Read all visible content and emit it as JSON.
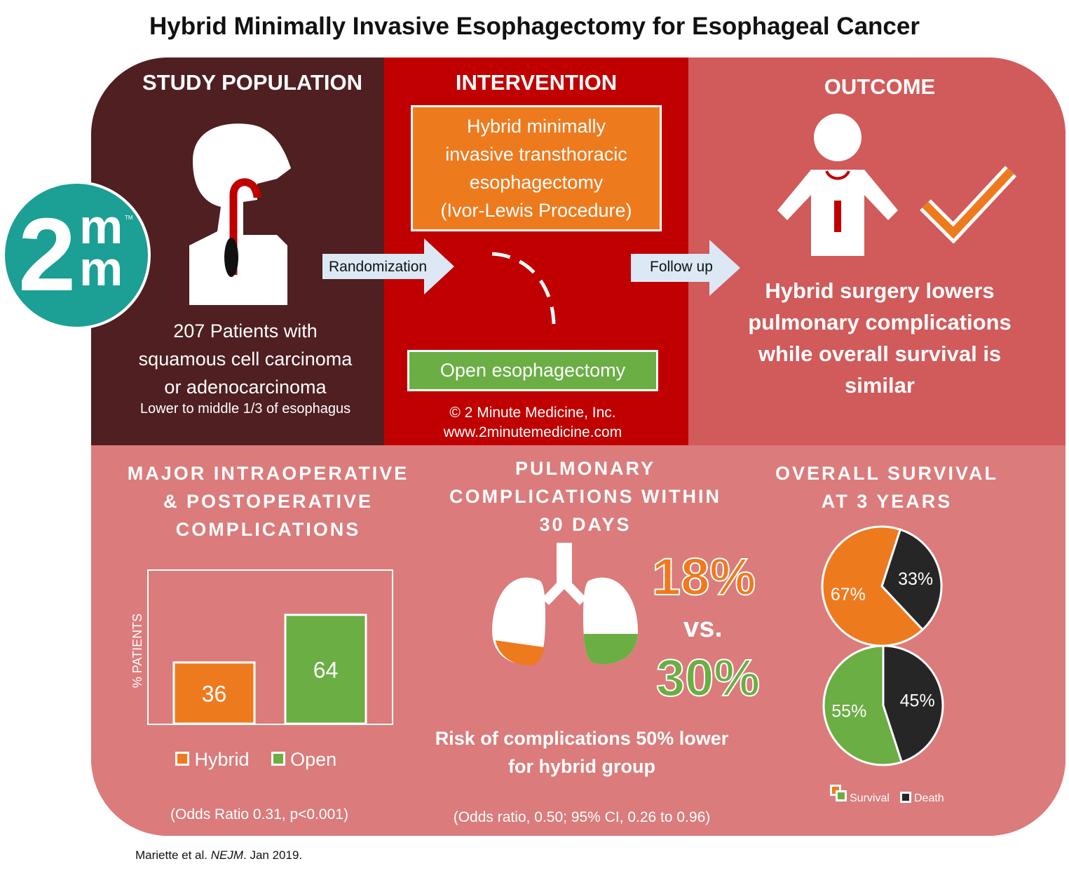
{
  "title": "Hybrid Minimally Invasive Esophagectomy for Esophageal Cancer",
  "logo": {
    "two": "2",
    "m_top": "m",
    "m_bottom": "m",
    "tm": "TM"
  },
  "population": {
    "heading": "STUDY POPULATION",
    "line1": "207 Patients with",
    "line2": "squamous cell carcinoma",
    "line3": "or adenocarcinoma",
    "line4": "Lower to middle 1/3 of esophagus"
  },
  "randomization_label": "Randomization",
  "intervention": {
    "heading": "INTERVENTION",
    "hybrid_line1": "Hybrid minimally",
    "hybrid_line2": "invasive transthoracic",
    "hybrid_line3": "esophagectomy",
    "hybrid_line4": "(Ivor-Lewis Procedure)",
    "open_label": "Open esophagectomy",
    "copyright": "© 2 Minute Medicine, Inc.",
    "website": "www.2minutemedicine.com"
  },
  "followup_label": "Follow up",
  "outcome": {
    "heading": "OUTCOME",
    "line1": "Hybrid surgery lowers",
    "line2": "pulmonary complications",
    "line3": "while overall survival is",
    "line4": "similar"
  },
  "major": {
    "heading1": "MAJOR INTRAOPERATIVE",
    "heading2": "& POSTOPERATIVE",
    "heading3": "COMPLICATIONS",
    "ylabel": "% PATIENTS",
    "legend_hybrid": "Hybrid",
    "legend_open": "Open",
    "stats": "(Odds Ratio 0.31, p<0.001)"
  },
  "pulmonary": {
    "heading1": "PULMONARY",
    "heading2": "COMPLICATIONS WITHIN",
    "heading3": "30 DAYS",
    "hybrid_pct": "18%",
    "vs": "vs.",
    "open_pct": "30%",
    "risk_line1": "Risk of complications 50% lower",
    "risk_line2": "for hybrid group",
    "stats": "(Odds ratio, 0.50; 95% CI, 0.26 to 0.96)"
  },
  "survival": {
    "heading1": "OVERALL SURVIVAL",
    "heading2": "AT 3 YEARS",
    "legend_survival": "Survival",
    "legend_death": "Death"
  },
  "colors": {
    "orange": "#ee7a1e",
    "green": "#6aae44",
    "dark": "#262626"
  },
  "chart_data": [
    {
      "type": "bar",
      "categories": [
        "Hybrid",
        "Open"
      ],
      "values": [
        36,
        64
      ],
      "ylabel": "% PATIENTS",
      "ylim": [
        0,
        100
      ],
      "colors": [
        "#ee7a1e",
        "#6aae44"
      ]
    },
    {
      "type": "pie",
      "name": "Hybrid",
      "labels": [
        "Survival",
        "Death"
      ],
      "values": [
        67,
        33
      ],
      "colors": [
        "#ee7a1e",
        "#262626"
      ]
    },
    {
      "type": "pie",
      "name": "Open",
      "labels": [
        "Survival",
        "Death"
      ],
      "values": [
        55,
        45
      ],
      "colors": [
        "#6aae44",
        "#262626"
      ]
    }
  ]
}
